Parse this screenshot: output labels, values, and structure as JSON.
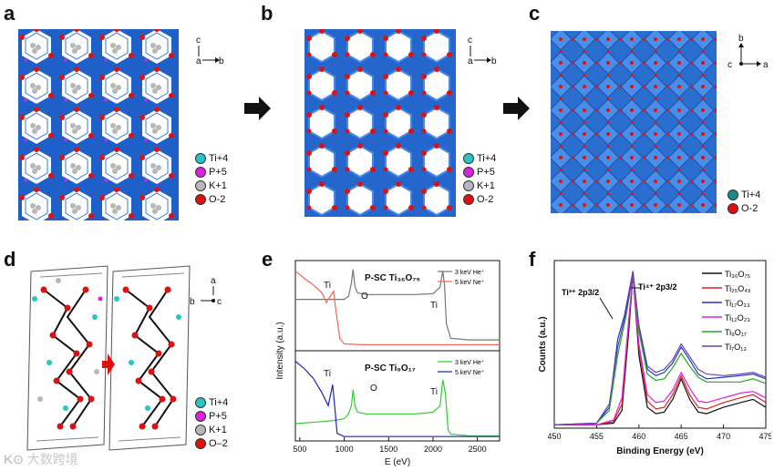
{
  "panels": {
    "a": {
      "letter": "a",
      "axes": {
        "up": "c",
        "right": "b",
        "origin": "a"
      },
      "legend": [
        {
          "label": "Ti+4",
          "color": "#26c6c6"
        },
        {
          "label": "P+5",
          "color": "#e020e0"
        },
        {
          "label": "K+1",
          "color": "#b8b8b8"
        },
        {
          "label": "O-2",
          "color": "#dd1111"
        }
      ]
    },
    "b": {
      "letter": "b",
      "axes": {
        "up": "c",
        "right": "b",
        "origin": "a"
      },
      "legend": [
        {
          "label": "Ti+4",
          "color": "#26c6c6"
        },
        {
          "label": "P+5",
          "color": "#e020e0"
        },
        {
          "label": "K+1",
          "color": "#b8b8b8"
        },
        {
          "label": "O-2",
          "color": "#dd1111"
        }
      ]
    },
    "c": {
      "letter": "c",
      "axes": {
        "up": "b",
        "right": "a",
        "origin": "c"
      },
      "legend": [
        {
          "label": "Ti+4",
          "color": "#1a8c8c"
        },
        {
          "label": "O-2",
          "color": "#dd1111"
        }
      ]
    },
    "d": {
      "letter": "d",
      "axes": {
        "up": "a",
        "right": "c",
        "origin": "b"
      },
      "legend": [
        {
          "label": "Ti+4",
          "color": "#26c6c6"
        },
        {
          "label": "P+5",
          "color": "#e020e0"
        },
        {
          "label": "K+1",
          "color": "#b8b8b8"
        },
        {
          "label": "O–2",
          "color": "#dd1111"
        }
      ]
    },
    "e": {
      "letter": "e"
    },
    "f": {
      "letter": "f"
    }
  },
  "watermark": "大数跨境",
  "chart_data": [
    {
      "type": "line",
      "panel": "e",
      "xlabel": "E (eV)",
      "ylabel": "Intensity (a.u.)",
      "xlim": [
        450,
        2750
      ],
      "xticks": [
        500,
        1000,
        1500,
        2000,
        2500
      ],
      "subplots": [
        {
          "title": "P-SC Ti₃₆O₇₅",
          "series": [
            {
              "name": "3 keV He⁺",
              "color": "#777777",
              "x": [
                450,
                600,
                750,
                900,
                1000,
                1050,
                1080,
                1100,
                1120,
                1150,
                1250,
                1500,
                1800,
                2000,
                2080,
                2110,
                2130,
                2150,
                2200,
                2400,
                2600,
                2750
              ],
              "y": [
                0.6,
                0.6,
                0.6,
                0.6,
                0.6,
                0.64,
                0.8,
                0.97,
                0.76,
                0.68,
                0.66,
                0.66,
                0.66,
                0.67,
                0.75,
                0.95,
                0.78,
                0.3,
                0.12,
                0.1,
                0.1,
                0.1
              ]
            },
            {
              "name": "5 keV Ne⁺",
              "color": "#ee6655",
              "x": [
                450,
                550,
                650,
                750,
                800,
                850,
                880,
                900,
                950,
                1000,
                1200,
                1600,
                2000,
                2400,
                2750
              ],
              "y": [
                0.95,
                0.86,
                0.78,
                0.68,
                0.56,
                0.65,
                0.7,
                0.52,
                0.12,
                0.05,
                0.04,
                0.04,
                0.04,
                0.04,
                0.04
              ]
            }
          ],
          "labels": [
            "Ti",
            "O",
            "Ti"
          ]
        },
        {
          "title": "P-SC Ti₉O₁₇",
          "series": [
            {
              "name": "3 keV He⁺",
              "color": "#33cc33",
              "x": [
                450,
                700,
                900,
                1000,
                1050,
                1080,
                1100,
                1120,
                1150,
                1250,
                1500,
                1800,
                2000,
                2080,
                2110,
                2140,
                2170,
                2200,
                2400,
                2600,
                2750
              ],
              "y": [
                0.18,
                0.2,
                0.22,
                0.24,
                0.3,
                0.4,
                0.6,
                0.4,
                0.32,
                0.3,
                0.3,
                0.3,
                0.32,
                0.4,
                0.72,
                0.55,
                0.1,
                0.05,
                0.03,
                0.03,
                0.03
              ]
            },
            {
              "name": "5 keV Ne⁺",
              "color": "#2222bb",
              "x": [
                450,
                550,
                650,
                750,
                820,
                850,
                870,
                890,
                920,
                1000,
                1200,
                1600,
                2000,
                2400,
                2750
              ],
              "y": [
                0.95,
                0.86,
                0.74,
                0.56,
                0.4,
                0.56,
                0.66,
                0.42,
                0.06,
                0.02,
                0.02,
                0.02,
                0.02,
                0.02,
                0.02
              ]
            }
          ],
          "labels": [
            "Ti",
            "O",
            "Ti"
          ]
        }
      ]
    },
    {
      "type": "line",
      "panel": "f",
      "xlabel": "Binding Energy (eV)",
      "ylabel": "Counts (a.u.)",
      "xlim": [
        450,
        475
      ],
      "xticks": [
        450,
        455,
        460,
        465,
        470,
        475
      ],
      "annotations": [
        "Ti³⁺ 2p3/2",
        "Ti⁴⁺ 2p3/2"
      ],
      "series": [
        {
          "name": "Ti₃₆O₇₅",
          "color": "#111111",
          "x": [
            450,
            455,
            457,
            458,
            458.8,
            459.3,
            460,
            461,
            462,
            463,
            464,
            465,
            466,
            467,
            468,
            470,
            472,
            473.5,
            475
          ],
          "y": [
            0.01,
            0.01,
            0.02,
            0.1,
            0.6,
            0.96,
            0.45,
            0.12,
            0.08,
            0.09,
            0.17,
            0.3,
            0.17,
            0.09,
            0.08,
            0.12,
            0.15,
            0.17,
            0.12
          ]
        },
        {
          "name": "Ti₂₅O₄₉",
          "color": "#dd2222",
          "x": [
            450,
            455,
            457,
            458,
            458.8,
            459.3,
            460,
            461,
            462,
            463,
            464,
            465,
            466,
            467,
            468,
            470,
            472,
            473.5,
            475
          ],
          "y": [
            0.01,
            0.01,
            0.03,
            0.14,
            0.65,
            0.96,
            0.5,
            0.16,
            0.11,
            0.12,
            0.2,
            0.32,
            0.2,
            0.12,
            0.11,
            0.15,
            0.18,
            0.2,
            0.15
          ]
        },
        {
          "name": "Ti₁₇O₃₃",
          "color": "#2233cc",
          "x": [
            450,
            455,
            456.5,
            457.5,
            458.3,
            459.3,
            460,
            461,
            462,
            463,
            464,
            465,
            466,
            467,
            468,
            470,
            472,
            473.5,
            475
          ],
          "y": [
            0.01,
            0.02,
            0.12,
            0.55,
            0.7,
            0.98,
            0.62,
            0.36,
            0.32,
            0.34,
            0.4,
            0.5,
            0.42,
            0.33,
            0.3,
            0.31,
            0.32,
            0.33,
            0.3
          ]
        },
        {
          "name": "Ti₁₂O₂₃",
          "color": "#dd22dd",
          "x": [
            450,
            455,
            457,
            458,
            458.8,
            459.3,
            460,
            461,
            462,
            463,
            464,
            465,
            466,
            467,
            468,
            470,
            472,
            473.5,
            475
          ],
          "y": [
            0.01,
            0.01,
            0.04,
            0.18,
            0.68,
            0.96,
            0.52,
            0.2,
            0.15,
            0.16,
            0.23,
            0.34,
            0.24,
            0.16,
            0.15,
            0.18,
            0.21,
            0.22,
            0.18
          ]
        },
        {
          "name": "Ti₉O₁₇",
          "color": "#22aa22",
          "x": [
            450,
            455,
            456.5,
            457.5,
            458.5,
            459.3,
            460,
            461,
            462,
            463,
            464,
            465,
            466,
            467,
            468,
            470,
            472,
            473.5,
            475
          ],
          "y": [
            0.01,
            0.02,
            0.1,
            0.45,
            0.7,
            0.97,
            0.6,
            0.33,
            0.29,
            0.3,
            0.37,
            0.46,
            0.38,
            0.31,
            0.28,
            0.28,
            0.28,
            0.3,
            0.27
          ]
        },
        {
          "name": "Ti₇O₁₃",
          "color": "#6644aa",
          "x": [
            450,
            455,
            456.5,
            457.5,
            458.5,
            459.3,
            460,
            461,
            462,
            463,
            464,
            465,
            466,
            467,
            468,
            470,
            472,
            473.5,
            475
          ],
          "y": [
            0.01,
            0.02,
            0.14,
            0.5,
            0.72,
            0.97,
            0.64,
            0.38,
            0.34,
            0.36,
            0.42,
            0.52,
            0.44,
            0.36,
            0.33,
            0.32,
            0.33,
            0.34,
            0.31
          ]
        }
      ]
    }
  ]
}
